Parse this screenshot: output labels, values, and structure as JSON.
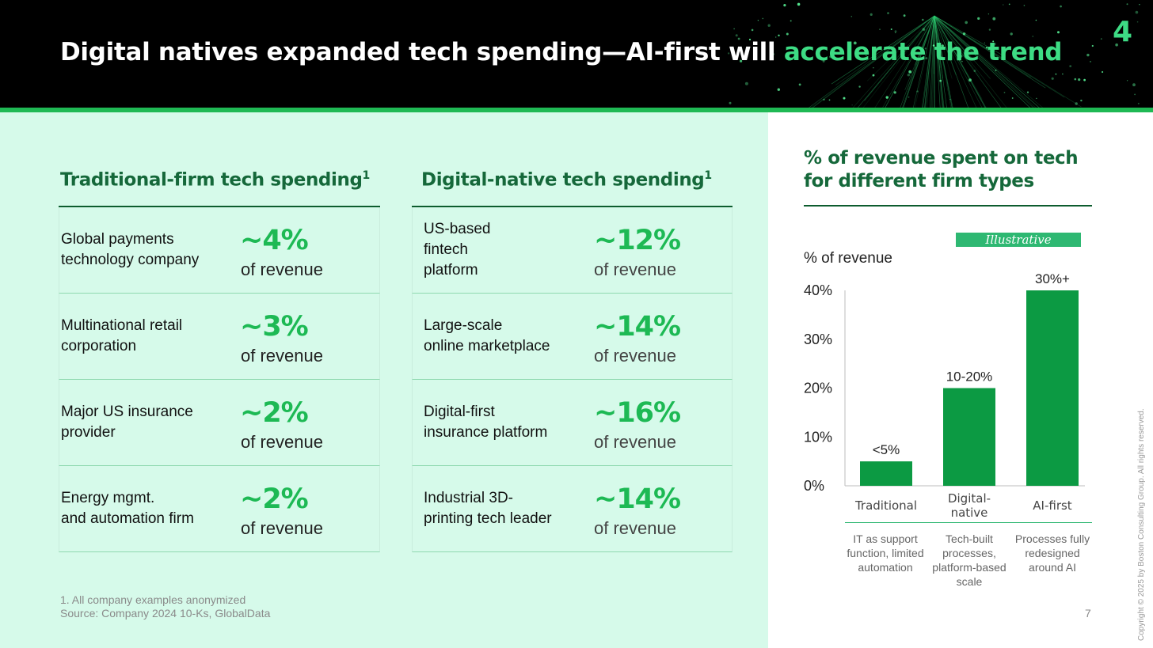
{
  "header": {
    "title_main": "Digital natives expanded tech spending—AI-first will",
    "title_accent": "accelerate the trend",
    "page_badge": "4"
  },
  "traditional": {
    "title": "Traditional-firm tech spending",
    "footnote_marker": "1",
    "rows": [
      {
        "name": "Global payments\ntechnology company",
        "value": "~4%",
        "unit": "of revenue"
      },
      {
        "name": "Multinational retail\ncorporation",
        "value": "~3%",
        "unit": "of revenue"
      },
      {
        "name": "Major US insurance\nprovider",
        "value": "~2%",
        "unit": "of revenue"
      },
      {
        "name": "Energy mgmt.\nand automation firm",
        "value": "~2%",
        "unit": "of revenue"
      }
    ]
  },
  "digital": {
    "title": "Digital-native tech spending",
    "footnote_marker": "1",
    "rows": [
      {
        "name": "US-based\nfintech\nplatform",
        "value": "~12%",
        "unit": "of revenue"
      },
      {
        "name": "Large-scale\nonline marketplace",
        "value": "~14%",
        "unit": "of revenue"
      },
      {
        "name": "Digital-first\ninsurance platform",
        "value": "~16%",
        "unit": "of revenue"
      },
      {
        "name": "Industrial 3D-\nprinting tech leader",
        "value": "~14%",
        "unit": "of revenue"
      }
    ]
  },
  "footnotes": {
    "note1": "1. All company examples anonymized",
    "source": "Source: Company 2024 10-Ks, GlobalData"
  },
  "chart_data": {
    "type": "bar",
    "title": "% of revenue spent on tech for different firm types",
    "badge": "Illustrative",
    "ylabel": "% of revenue",
    "ylim": [
      0,
      40
    ],
    "yticks": [
      "0%",
      "10%",
      "20%",
      "30%",
      "40%"
    ],
    "yticks_values": [
      0,
      10,
      20,
      30,
      40
    ],
    "categories": [
      "Traditional",
      "Digital-\nnative",
      "AI-first"
    ],
    "values": [
      5,
      20,
      40
    ],
    "data_labels": [
      "<5%",
      "10-20%",
      "30%+"
    ],
    "descriptions": [
      "IT as support function, limited automation",
      "Tech-built processes, platform-based scale",
      "Processes fully redesigned around AI"
    ],
    "bar_color": "#0c9a43",
    "grid": false
  },
  "colors": {
    "accent": "#3ddc84",
    "dark_green": "#15683a",
    "panel_bg": "#d6faea"
  },
  "copyright": "Copyright © 2025 by Boston Consulting Group. All rights reserved.",
  "slide_number": "7"
}
